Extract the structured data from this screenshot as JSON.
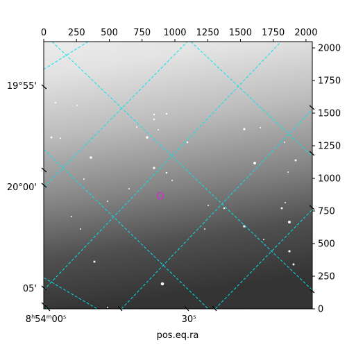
{
  "figure": {
    "xlabel": "pos.eq.ra",
    "top_axis": {
      "ticks": [
        0,
        250,
        500,
        750,
        1000,
        1250,
        1500,
        1750,
        2000
      ],
      "range": [
        0,
        2048
      ]
    },
    "right_axis": {
      "ticks": [
        0,
        250,
        500,
        750,
        1000,
        1250,
        1500,
        1750,
        2000
      ],
      "range": [
        0,
        2048
      ]
    },
    "bottom_ra_labels": [
      "8h54m00s",
      "30s"
    ],
    "left_dec_labels": [
      "19°55'",
      "20°00'",
      "05'"
    ],
    "grid_color": "#00e5ee",
    "marker_color": "#cc33cc",
    "image_style": "grayscale sky image, brighter toward top"
  }
}
